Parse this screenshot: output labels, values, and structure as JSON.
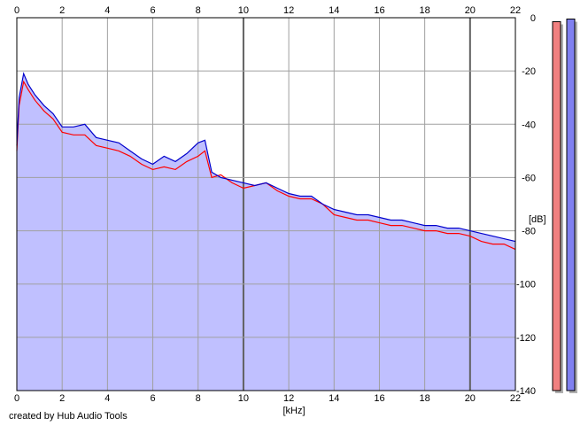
{
  "chart_data": {
    "type": "area",
    "xlabel": "[kHz]",
    "ylabel": "[dB]",
    "xlim": [
      0,
      22
    ],
    "ylim": [
      -140,
      0
    ],
    "x_ticks": [
      0,
      2,
      4,
      6,
      8,
      10,
      12,
      14,
      16,
      18,
      20,
      22
    ],
    "y_ticks": [
      0,
      -20,
      -40,
      -60,
      -80,
      -100,
      -120,
      -140
    ],
    "grid": true,
    "credit": "created by Hub Audio Tools",
    "colors": {
      "left_channel": "#ff0000",
      "right_channel": "#0000cc",
      "fill": "#c0c0ff",
      "grid": "#a0a0a0",
      "meter_left": "#f08080",
      "meter_right": "#8080f0"
    },
    "series": [
      {
        "x": [
          0,
          0.1,
          0.3,
          0.5,
          0.8,
          1.2,
          1.6,
          2.0,
          2.5,
          3.0,
          3.5,
          4.0,
          4.5,
          5.0,
          5.5,
          6.0,
          6.5,
          7.0,
          7.5,
          8.0,
          8.3,
          8.6,
          9.0,
          9.5,
          10.0,
          10.5,
          11.0,
          11.5,
          12.0,
          12.5,
          13.0,
          13.5,
          14.0,
          14.5,
          15.0,
          15.5,
          16.0,
          16.5,
          17.0,
          17.5,
          18.0,
          18.5,
          19.0,
          19.5,
          20.0,
          20.5,
          21.0,
          21.5,
          22.0
        ],
        "values": [
          -50,
          -33,
          -24,
          -27,
          -31,
          -35,
          -38,
          -43,
          -44,
          -44,
          -48,
          -49,
          -50,
          -52,
          -55,
          -57,
          -56,
          -57,
          -54,
          -52,
          -50,
          -60,
          -59,
          -62,
          -64,
          -63,
          -62,
          -65,
          -67,
          -68,
          -68,
          -70,
          -74,
          -75,
          -76,
          -76,
          -77,
          -78,
          -78,
          -79,
          -80,
          -80,
          -81,
          -81,
          -82,
          -84,
          -85,
          -85,
          -87
        ]
      },
      {
        "x": [
          0,
          0.1,
          0.3,
          0.5,
          0.8,
          1.2,
          1.6,
          2.0,
          2.5,
          3.0,
          3.5,
          4.0,
          4.5,
          5.0,
          5.5,
          6.0,
          6.5,
          7.0,
          7.5,
          8.0,
          8.3,
          8.6,
          9.0,
          9.5,
          10.0,
          10.5,
          11.0,
          11.5,
          12.0,
          12.5,
          13.0,
          13.5,
          14.0,
          14.5,
          15.0,
          15.5,
          16.0,
          16.5,
          17.0,
          17.5,
          18.0,
          18.5,
          19.0,
          19.5,
          20.0,
          20.5,
          21.0,
          21.5,
          22.0
        ],
        "values": [
          -48,
          -30,
          -21,
          -25,
          -29,
          -33,
          -36,
          -41,
          -41,
          -40,
          -45,
          -46,
          -47,
          -50,
          -53,
          -55,
          -52,
          -54,
          -51,
          -47,
          -46,
          -58,
          -60,
          -61,
          -62,
          -63,
          -62,
          -64,
          -66,
          -67,
          -67,
          -70,
          -72,
          -73,
          -74,
          -74,
          -75,
          -76,
          -76,
          -77,
          -78,
          -78,
          -79,
          -79,
          -80,
          -81,
          -82,
          -83,
          -84
        ]
      }
    ],
    "meters": [
      {
        "channel": "left",
        "value": -1.5
      },
      {
        "channel": "right",
        "value": -0.5
      }
    ]
  }
}
